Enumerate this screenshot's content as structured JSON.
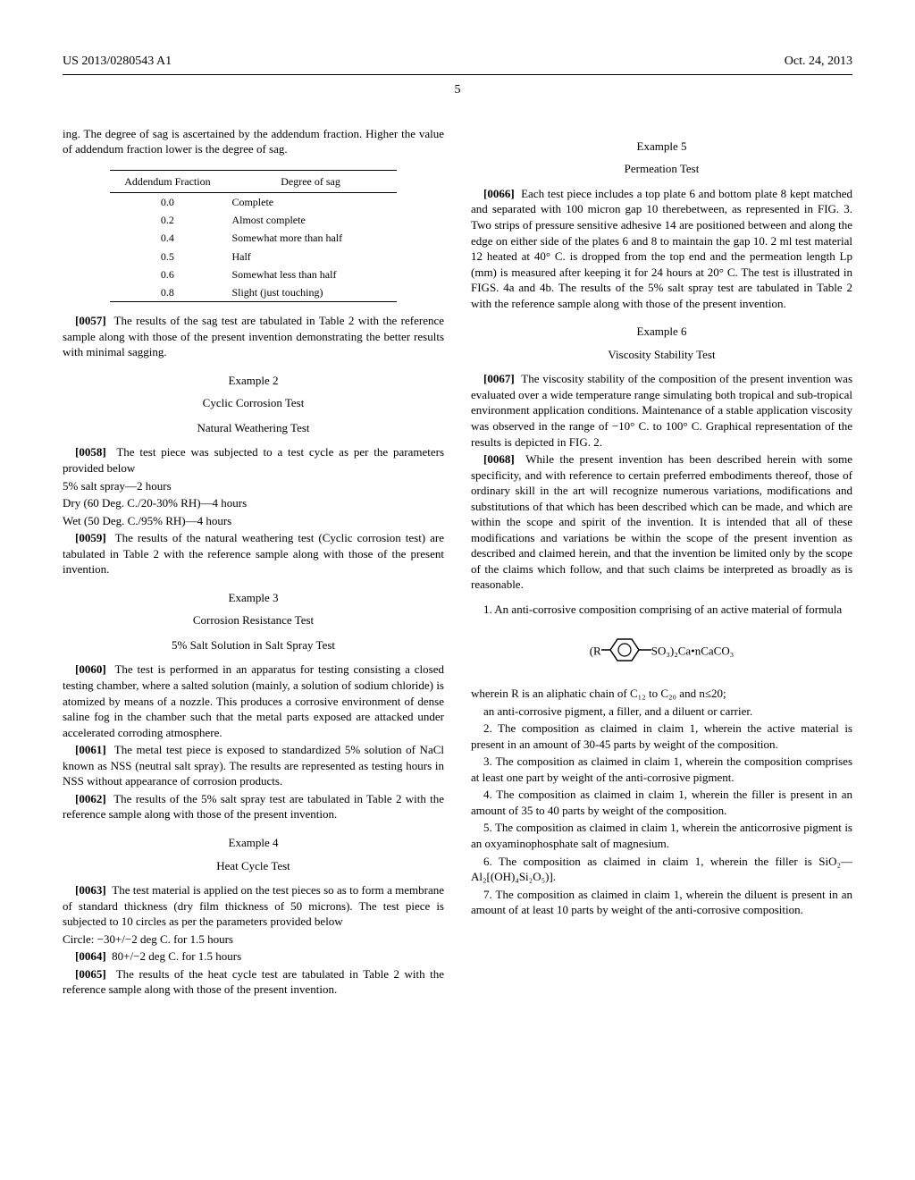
{
  "header": {
    "pub_number": "US 2013/0280543 A1",
    "date": "Oct. 24, 2013",
    "page": "5"
  },
  "left": {
    "intro": "ing. The degree of sag is ascertained by the addendum fraction. Higher the value of addendum fraction lower is the degree of sag.",
    "table": {
      "col1": "Addendum Fraction",
      "col2": "Degree of sag",
      "rows": [
        [
          "0.0",
          "Complete"
        ],
        [
          "0.2",
          "Almost complete"
        ],
        [
          "0.4",
          "Somewhat more than half"
        ],
        [
          "0.5",
          "Half"
        ],
        [
          "0.6",
          "Somewhat less than half"
        ],
        [
          "0.8",
          "Slight (just touching)"
        ]
      ]
    },
    "p0057_num": "[0057]",
    "p0057": "The results of the sag test are tabulated in Table 2 with the reference sample along with those of the present invention demonstrating the better results with minimal sagging.",
    "ex2": "Example 2",
    "ex2_sub1": "Cyclic Corrosion Test",
    "ex2_sub2": "Natural Weathering Test",
    "p0058_num": "[0058]",
    "p0058": "The test piece was subjected to a test cycle as per the parameters provided below",
    "p0058_l1": "5% salt spray—2 hours",
    "p0058_l2": "Dry (60 Deg. C./20-30% RH)—4 hours",
    "p0058_l3": "Wet (50 Deg. C./95% RH)—4 hours",
    "p0059_num": "[0059]",
    "p0059": "The results of the natural weathering test (Cyclic corrosion test) are tabulated in Table 2 with the reference sample along with those of the present invention.",
    "ex3": "Example 3",
    "ex3_sub1": "Corrosion Resistance Test",
    "ex3_sub2": "5% Salt Solution in Salt Spray Test",
    "p0060_num": "[0060]",
    "p0060": "The test is performed in an apparatus for testing consisting a closed testing chamber, where a salted solution (mainly, a solution of sodium chloride) is atomized by means of a nozzle. This produces a corrosive environment of dense saline fog in the chamber such that the metal parts exposed are attacked under accelerated corroding atmosphere.",
    "p0061_num": "[0061]",
    "p0061": "The metal test piece is exposed to standardized 5% solution of NaCl known as NSS (neutral salt spray). The results are represented as testing hours in NSS without appearance of corrosion products.",
    "p0062_num": "[0062]",
    "p0062": "The results of the 5% salt spray test are tabulated in Table 2 with the reference sample along with those of the present invention.",
    "ex4": "Example 4",
    "ex4_sub": "Heat Cycle Test",
    "p0063_num": "[0063]",
    "p0063": "The test material is applied on the test pieces so as to form a membrane of standard thickness (dry film thickness of 50 microns). The test piece is subjected to 10 circles as per the parameters provided below",
    "p0063_l1": "Circle: −30+/−2 deg C. for 1.5 hours",
    "p0064_num": "[0064]",
    "p0064": "80+/−2 deg C. for 1.5 hours",
    "p0065_num": "[0065]",
    "p0065": "The results of the heat cycle test are tabulated in Table 2 with the reference sample along with those of the present invention."
  },
  "right": {
    "ex5": "Example 5",
    "ex5_sub": "Permeation Test",
    "p0066_num": "[0066]",
    "p0066": "Each test piece includes a top plate 6 and bottom plate 8 kept matched and separated with 100 micron gap 10 therebetween, as represented in FIG. 3. Two strips of pressure sensitive adhesive 14 are positioned between and along the edge on either side of the plates 6 and 8 to maintain the gap 10. 2 ml test material 12 heated at 40° C. is dropped from the top end and the permeation length Lp (mm) is measured after keeping it for 24 hours at 20° C. The test is illustrated in FIGS. 4a and 4b. The results of the 5% salt spray test are tabulated in Table 2 with the reference sample along with those of the present invention.",
    "ex6": "Example 6",
    "ex6_sub": "Viscosity Stability Test",
    "p0067_num": "[0067]",
    "p0067": "The viscosity stability of the composition of the present invention was evaluated over a wide temperature range simulating both tropical and sub-tropical environment application conditions. Maintenance of a stable application viscosity was observed in the range of −10° C. to 100° C. Graphical representation of the results is depicted in FIG. 2.",
    "p0068_num": "[0068]",
    "p0068": "While the present invention has been described herein with some specificity, and with reference to certain preferred embodiments thereof, those of ordinary skill in the art will recognize numerous variations, modifications and substitutions of that which has been described which can be made, and which are within the scope and spirit of the invention. It is intended that all of these modifications and variations be within the scope of the present invention as described and claimed herein, and that the invention be limited only by the scope of the claims which follow, and that such claims be interpreted as broadly as is reasonable.",
    "claim1a": "1. An anti-corrosive composition comprising of an active material of formula",
    "formula_left": "(R",
    "formula_right": "SO₃)₂Ca•nCaCO₃",
    "claim1b": "wherein R is an aliphatic chain of C₁₂ to C₂₀ and n≤20;",
    "claim1c": "an anti-corrosive pigment, a filler, and a diluent or carrier.",
    "claim2": "2. The composition as claimed in claim 1, wherein the active material is present in an amount of 30-45 parts by weight of the composition.",
    "claim3": "3. The composition as claimed in claim 1, wherein the composition comprises at least one part by weight of the anti-corrosive pigment.",
    "claim4": "4. The composition as claimed in claim 1, wherein the filler is present in an amount of 35 to 40 parts by weight of the composition.",
    "claim5": "5. The composition as claimed in claim 1, wherein the anticorrosive pigment is an oxyaminophosphate salt of magnesium.",
    "claim6": "6. The composition as claimed in claim 1, wherein the filler is SiO₂—Al₂[(OH)₄Si₂O₅)].",
    "claim7": "7. The composition as claimed in claim 1, wherein the diluent is present in an amount of at least 10 parts by weight of the anti-corrosive composition."
  }
}
